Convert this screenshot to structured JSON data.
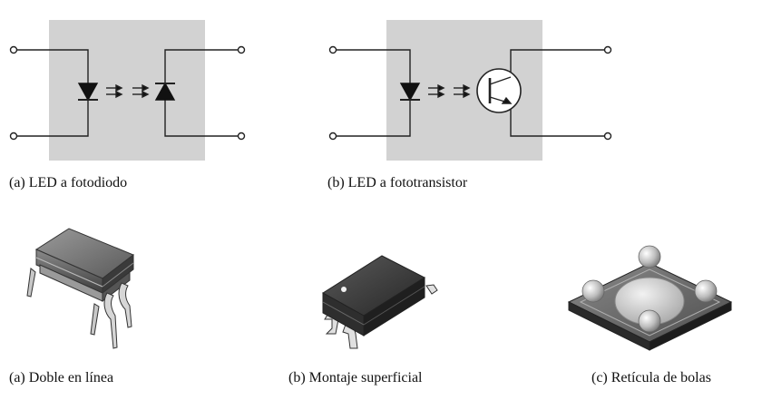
{
  "captions": {
    "top_a": "(a)  LED a fotodiodo",
    "top_b": "(b)  LED a fototransistor",
    "bottom_a": "(a) Doble en línea",
    "bottom_b": "(b) Montaje superficial",
    "bottom_c": "(c) Retícula de bolas"
  },
  "colors": {
    "panel": "#d2d2d2",
    "line": "#222222",
    "package_dark": "#4a4a4a",
    "package_light": "#8e8e8e",
    "ball": "#cfcfcf"
  }
}
